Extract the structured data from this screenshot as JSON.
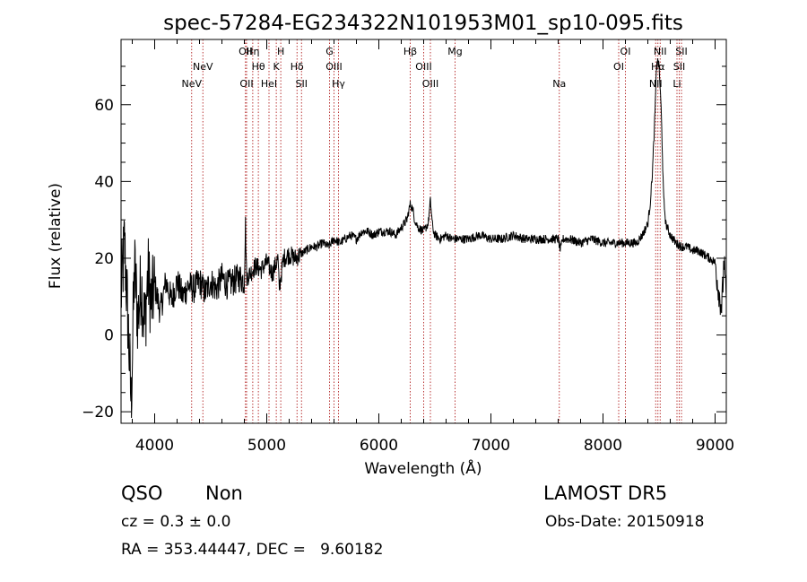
{
  "chart_data": {
    "type": "line",
    "title": "spec-57284-EG234322N101953M01_sp10-095.fits",
    "xlabel": "Wavelength (Å)",
    "ylabel": "Flux (relative)",
    "xlim": [
      3700,
      9100
    ],
    "ylim": [
      -23,
      77
    ],
    "xticks": [
      4000,
      5000,
      6000,
      7000,
      8000,
      9000
    ],
    "yticks": [
      -20,
      0,
      20,
      40,
      60
    ],
    "grid": false,
    "line_color": "#000000",
    "marker_color": "#b22222",
    "anchors": [
      [
        3700,
        10
      ],
      [
        3730,
        24
      ],
      [
        3760,
        5
      ],
      [
        3790,
        -18
      ],
      [
        3820,
        18
      ],
      [
        3850,
        4
      ],
      [
        3880,
        14
      ],
      [
        3910,
        2
      ],
      [
        3940,
        16
      ],
      [
        3970,
        8
      ],
      [
        4000,
        13
      ],
      [
        4050,
        6
      ],
      [
        4100,
        14
      ],
      [
        4150,
        9
      ],
      [
        4200,
        14
      ],
      [
        4250,
        10
      ],
      [
        4300,
        13
      ],
      [
        4350,
        12
      ],
      [
        4400,
        14
      ],
      [
        4450,
        11
      ],
      [
        4500,
        14
      ],
      [
        4550,
        12
      ],
      [
        4600,
        15
      ],
      [
        4650,
        13
      ],
      [
        4700,
        14
      ],
      [
        4760,
        15
      ],
      [
        4800,
        14
      ],
      [
        4810,
        29
      ],
      [
        4820,
        15
      ],
      [
        4850,
        16
      ],
      [
        4900,
        18
      ],
      [
        4950,
        17
      ],
      [
        5000,
        19
      ],
      [
        5050,
        16
      ],
      [
        5100,
        20
      ],
      [
        5110,
        12
      ],
      [
        5150,
        20
      ],
      [
        5200,
        21
      ],
      [
        5250,
        20
      ],
      [
        5300,
        21
      ],
      [
        5350,
        22
      ],
      [
        5400,
        23
      ],
      [
        5450,
        23
      ],
      [
        5500,
        24
      ],
      [
        5550,
        23
      ],
      [
        5600,
        25
      ],
      [
        5650,
        24
      ],
      [
        5700,
        25
      ],
      [
        5750,
        26
      ],
      [
        5800,
        25
      ],
      [
        5850,
        27
      ],
      [
        5900,
        27
      ],
      [
        5950,
        26
      ],
      [
        6000,
        27
      ],
      [
        6050,
        27
      ],
      [
        6100,
        27
      ],
      [
        6150,
        26
      ],
      [
        6200,
        28
      ],
      [
        6250,
        30
      ],
      [
        6280,
        34
      ],
      [
        6300,
        33
      ],
      [
        6320,
        30
      ],
      [
        6350,
        28
      ],
      [
        6400,
        27
      ],
      [
        6440,
        29
      ],
      [
        6460,
        35
      ],
      [
        6480,
        28
      ],
      [
        6500,
        26
      ],
      [
        6550,
        25
      ],
      [
        6600,
        26
      ],
      [
        6650,
        25
      ],
      [
        6700,
        25
      ],
      [
        6800,
        25
      ],
      [
        6900,
        26
      ],
      [
        7000,
        25
      ],
      [
        7100,
        25
      ],
      [
        7200,
        26
      ],
      [
        7300,
        25
      ],
      [
        7400,
        25
      ],
      [
        7500,
        25
      ],
      [
        7600,
        25
      ],
      [
        7620,
        22
      ],
      [
        7640,
        25
      ],
      [
        7700,
        25
      ],
      [
        7800,
        24
      ],
      [
        7900,
        25
      ],
      [
        8000,
        24
      ],
      [
        8100,
        24
      ],
      [
        8200,
        24
      ],
      [
        8300,
        24
      ],
      [
        8350,
        26
      ],
      [
        8400,
        29
      ],
      [
        8420,
        34
      ],
      [
        8440,
        42
      ],
      [
        8460,
        55
      ],
      [
        8480,
        72
      ],
      [
        8500,
        70
      ],
      [
        8520,
        58
      ],
      [
        8540,
        36
      ],
      [
        8560,
        29
      ],
      [
        8600,
        26
      ],
      [
        8650,
        24
      ],
      [
        8700,
        23
      ],
      [
        8750,
        23
      ],
      [
        8800,
        22
      ],
      [
        8850,
        22
      ],
      [
        8900,
        21
      ],
      [
        8950,
        20
      ],
      [
        9000,
        19
      ],
      [
        9020,
        14
      ],
      [
        9040,
        10
      ],
      [
        9060,
        7
      ],
      [
        9080,
        20
      ],
      [
        9100,
        8
      ]
    ],
    "lines": [
      {
        "name": "NeV",
        "x": 4330,
        "row": 3
      },
      {
        "name": "NeV",
        "x": 4430,
        "row": 2
      },
      {
        "name": "OII",
        "x": 4810,
        "row": 1
      },
      {
        "name": "OII",
        "x": 4820,
        "row": 3
      },
      {
        "name": "Hη",
        "x": 4875,
        "row": 1
      },
      {
        "name": "Hθ",
        "x": 4925,
        "row": 2
      },
      {
        "name": "HeI",
        "x": 5020,
        "row": 3
      },
      {
        "name": "K",
        "x": 5085,
        "row": 2
      },
      {
        "name": "H",
        "x": 5125,
        "row": 1
      },
      {
        "name": "Hδ",
        "x": 5270,
        "row": 2
      },
      {
        "name": "SII",
        "x": 5310,
        "row": 3
      },
      {
        "name": "G",
        "x": 5560,
        "row": 1
      },
      {
        "name": "OIII",
        "x": 5600,
        "row": 2
      },
      {
        "name": "Hγ",
        "x": 5640,
        "row": 3
      },
      {
        "name": "Hβ",
        "x": 6280,
        "row": 1
      },
      {
        "name": "OIII",
        "x": 6400,
        "row": 2
      },
      {
        "name": "OIII",
        "x": 6460,
        "row": 3
      },
      {
        "name": "Mg",
        "x": 6680,
        "row": 1
      },
      {
        "name": "Na",
        "x": 7610,
        "row": 3
      },
      {
        "name": "OI",
        "x": 8140,
        "row": 2
      },
      {
        "name": "OI",
        "x": 8200,
        "row": 1
      },
      {
        "name": "NII",
        "x": 8470,
        "row": 3
      },
      {
        "name": "Hα",
        "x": 8490,
        "row": 2
      },
      {
        "name": "NII",
        "x": 8510,
        "row": 1
      },
      {
        "name": "Li",
        "x": 8660,
        "row": 3
      },
      {
        "name": "SII",
        "x": 8680,
        "row": 2
      },
      {
        "name": "SII",
        "x": 8700,
        "row": 1
      }
    ]
  },
  "info": {
    "class": "QSO",
    "subclass": "Non",
    "survey": "LAMOST DR5",
    "cz": "cz = 0.3 ± 0.0",
    "obs_date": "Obs-Date: 20150918",
    "radec": "RA = 353.44447, DEC =   9.60182"
  }
}
